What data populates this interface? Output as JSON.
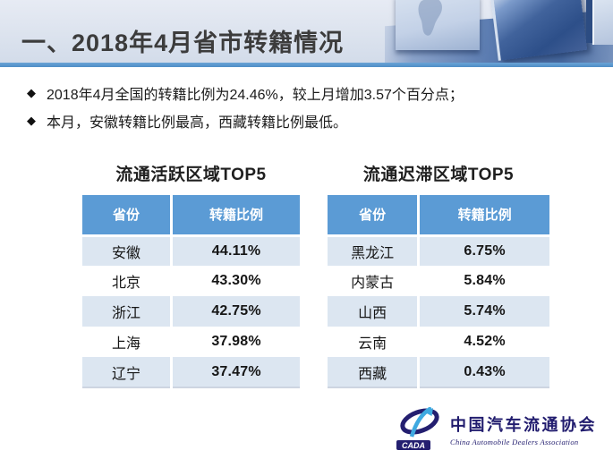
{
  "slide": {
    "title": "一、2018年4月省市转籍情况",
    "bullet_marker": "◆",
    "bullets": [
      "2018年4月全国的转籍比例为24.46%，较上月增加3.57个百分点；",
      "本月，安徽转籍比例最高，西藏转籍比例最低。"
    ]
  },
  "tables": [
    {
      "title": "流通活跃区域TOP5",
      "columns": [
        "省份",
        "转籍比例"
      ],
      "rows": [
        [
          "安徽",
          "44.11%"
        ],
        [
          "北京",
          "43.30%"
        ],
        [
          "浙江",
          "42.75%"
        ],
        [
          "上海",
          "37.98%"
        ],
        [
          "辽宁",
          "37.47%"
        ]
      ]
    },
    {
      "title": "流通迟滞区域TOP5",
      "columns": [
        "省份",
        "转籍比例"
      ],
      "rows": [
        [
          "黑龙江",
          "6.75%"
        ],
        [
          "内蒙古",
          "5.84%"
        ],
        [
          "山西",
          "5.74%"
        ],
        [
          "云南",
          "4.52%"
        ],
        [
          "西藏",
          "0.43%"
        ]
      ]
    }
  ],
  "chart_data": [
    {
      "type": "table",
      "title": "流通活跃区域TOP5",
      "columns": [
        "省份",
        "转籍比例"
      ],
      "categories": [
        "安徽",
        "北京",
        "浙江",
        "上海",
        "辽宁"
      ],
      "values": [
        44.11,
        43.3,
        42.75,
        37.98,
        37.47
      ],
      "unit": "%"
    },
    {
      "type": "table",
      "title": "流通迟滞区域TOP5",
      "columns": [
        "省份",
        "转籍比例"
      ],
      "categories": [
        "黑龙江",
        "内蒙古",
        "山西",
        "云南",
        "西藏"
      ],
      "values": [
        6.75,
        5.84,
        5.74,
        4.52,
        0.43
      ],
      "unit": "%"
    }
  ],
  "logo": {
    "acronym": "CADA",
    "name_zh": "中国汽车流通协会",
    "name_en": "China Automobile Dealers Association"
  },
  "colors": {
    "table_header_blue": "#5b9bd5",
    "band_row_blue": "#dce6f1",
    "accent_line_blue": "#5f9ccf",
    "banner_background": "#dee4ef",
    "title_text": "#3c3c3c",
    "logo_navy": "#211c6e"
  }
}
